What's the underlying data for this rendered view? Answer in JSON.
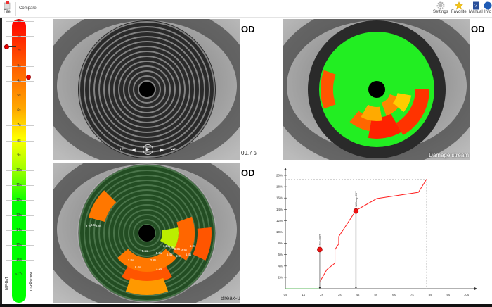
{
  "toolbar": {
    "file": "File",
    "compare": "Compare",
    "settings": "Settings",
    "favorite": "Favorite",
    "manual": "Manual",
    "info": "Info"
  },
  "scale": {
    "ticks": [
      "0s",
      "1s",
      "2s",
      "3s",
      "4s",
      "5s",
      "6s",
      "7s",
      "8s",
      "9s",
      "10s",
      "11s",
      "12s",
      "13s",
      "14s",
      "15s",
      "16s",
      "17s"
    ],
    "last_tick": "≥17s",
    "left_label": "NIF-BuT",
    "right_label": "NIKavg-BuT",
    "marker_left": "2s",
    "marker_right": "4s",
    "colors": {
      "top": "#ff0000",
      "mid": "#ffff00",
      "bottom": "#00ff00"
    }
  },
  "panels": {
    "video": {
      "eye": "OD",
      "time": "09.7 s",
      "controls": [
        "skip-back",
        "step-back",
        "play",
        "step-forward",
        "skip-forward"
      ]
    },
    "damage": {
      "eye": "OD",
      "label": "Damage stream"
    },
    "breakup": {
      "eye": "OD",
      "label": "Break-up map",
      "segments": [
        "3.2s",
        "3.6s",
        "3.8s",
        "7.2s",
        "7.4s",
        "6.8s",
        "4.9s",
        "5.6s",
        "5.0s",
        "5.4s",
        "5.6s",
        "5.4s",
        "5.0s",
        "1.8s",
        "2.8s",
        "6.4s",
        "7.2s"
      ]
    }
  },
  "chart_data": {
    "type": "line",
    "xlim": [
      0,
      10
    ],
    "ylim": [
      0,
      20
    ],
    "xticks": [
      "0s",
      "1s",
      "2s",
      "3s",
      "4s",
      "5s",
      "6s",
      "7s",
      "8s",
      "9s",
      "10s"
    ],
    "yticks": [
      "2%",
      "4%",
      "6%",
      "8%",
      "10%",
      "12%",
      "14%",
      "16%",
      "18%",
      "20%"
    ],
    "baseline": {
      "x": [
        0,
        1.9
      ],
      "y": [
        0,
        0
      ],
      "color": "#5cb85c"
    },
    "series": [
      {
        "color": "#ff2020",
        "x": [
          1.9,
          2.3,
          2.74,
          2.74,
          2.95,
          2.95,
          3.9,
          5.05,
          7.35,
          7.8
        ],
        "y": [
          1.2,
          3.4,
          4.5,
          6.9,
          7.9,
          9.2,
          13.8,
          15.9,
          17.0,
          19.3
        ]
      }
    ],
    "markers": [
      {
        "label": "NIF-BUT",
        "x": 1.9,
        "y": 6.9
      },
      {
        "label": "NIKavg-BUT",
        "x": 3.9,
        "y": 13.7
      }
    ],
    "end": {
      "x": 7.8,
      "y": 19.3
    }
  }
}
